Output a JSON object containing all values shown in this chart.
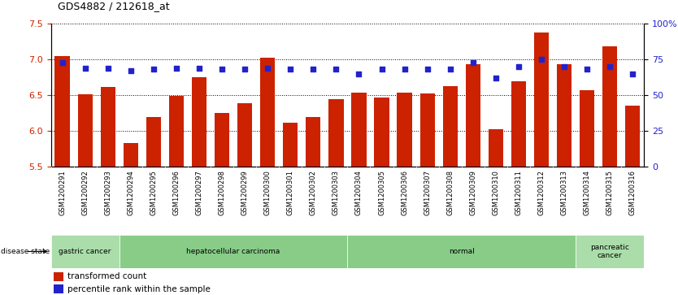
{
  "title": "GDS4882 / 212618_at",
  "samples": [
    "GSM1200291",
    "GSM1200292",
    "GSM1200293",
    "GSM1200294",
    "GSM1200295",
    "GSM1200296",
    "GSM1200297",
    "GSM1200298",
    "GSM1200299",
    "GSM1200300",
    "GSM1200301",
    "GSM1200302",
    "GSM1200303",
    "GSM1200304",
    "GSM1200305",
    "GSM1200306",
    "GSM1200307",
    "GSM1200308",
    "GSM1200309",
    "GSM1200310",
    "GSM1200311",
    "GSM1200312",
    "GSM1200313",
    "GSM1200314",
    "GSM1200315",
    "GSM1200316"
  ],
  "bar_values": [
    7.05,
    6.51,
    6.61,
    5.83,
    6.19,
    6.49,
    6.75,
    6.25,
    6.39,
    7.02,
    6.11,
    6.19,
    6.44,
    6.54,
    6.47,
    6.54,
    6.52,
    6.63,
    6.93,
    6.02,
    6.69,
    7.38,
    6.93,
    6.57,
    7.18,
    6.35
  ],
  "percentile_values": [
    73,
    69,
    69,
    67,
    68,
    69,
    69,
    68,
    68,
    69,
    68,
    68,
    68,
    65,
    68,
    68,
    68,
    68,
    73,
    62,
    70,
    75,
    70,
    68,
    70,
    65
  ],
  "ylim_left": [
    5.5,
    7.5
  ],
  "ylim_right": [
    0,
    100
  ],
  "bar_color": "#cc2200",
  "dot_color": "#2222cc",
  "bg_color": "#ffffff",
  "tick_label_color_left": "#cc2200",
  "tick_label_color_right": "#2222cc",
  "disease_groups": [
    {
      "label": "gastric cancer",
      "start": 0,
      "end": 3
    },
    {
      "label": "hepatocellular carcinoma",
      "start": 3,
      "end": 13
    },
    {
      "label": "normal",
      "start": 13,
      "end": 23
    },
    {
      "label": "pancreatic\ncancer",
      "start": 23,
      "end": 26
    }
  ],
  "group_colors": [
    "#aaddaa",
    "#88cc88",
    "#88cc88",
    "#aaddaa"
  ],
  "yticks_left": [
    5.5,
    6.0,
    6.5,
    7.0,
    7.5
  ],
  "yticks_right": [
    0,
    25,
    50,
    75,
    100
  ],
  "legend_items": [
    {
      "label": "transformed count",
      "color": "#cc2200"
    },
    {
      "label": "percentile rank within the sample",
      "color": "#2222cc"
    }
  ]
}
